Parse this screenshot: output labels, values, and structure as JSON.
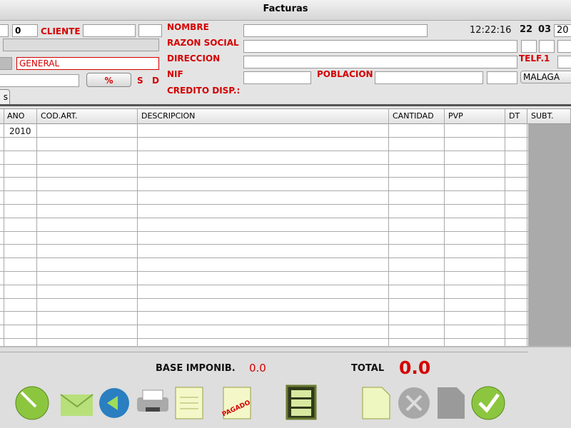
{
  "window": {
    "title": "Facturas"
  },
  "form": {
    "client_code": "0",
    "client_label": "CLIENTE",
    "group": "GENERAL",
    "percent_button": "%",
    "s_label": "S",
    "d_label": "D",
    "tab": "s",
    "nombre": "NOMBRE",
    "razon_social": "RAZON SOCIAL",
    "direccion": "DIRECCION",
    "nif": "NIF",
    "credito": "CREDITO DISP.:",
    "poblacion": "POBLACION",
    "time": "12:22:16",
    "day": "22",
    "month": "03",
    "year": "20",
    "telf": "TELF.1",
    "city": "MALAGA"
  },
  "table": {
    "header": [
      "ANO",
      "COD.ART.",
      "DESCRIPCION",
      "CANTIDAD",
      "PVP",
      "DT",
      "SUBT."
    ],
    "rows": [
      {
        "ano": "2010"
      }
    ]
  },
  "footer": {
    "base_label": "BASE IMPONIB.",
    "base_value": "0.0",
    "total_label": "TOTAL",
    "total_value": "0.0",
    "paid_icon": "PAGADO"
  }
}
